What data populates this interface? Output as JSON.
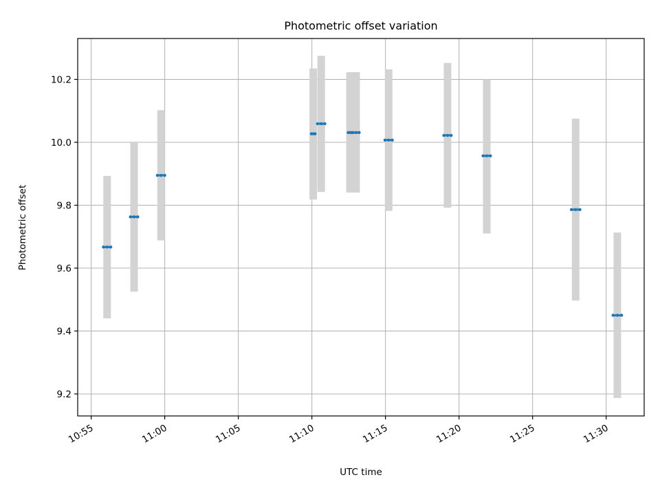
{
  "chart_data": {
    "type": "scatter",
    "title": "Photometric offset variation",
    "xlabel": "UTC time",
    "ylabel": "Photometric offset",
    "x_ticks": [
      "10:55",
      "11:00",
      "11:05",
      "11:10",
      "11:15",
      "11:20",
      "11:25",
      "11:30"
    ],
    "y_ticks": [
      "9.2",
      "9.4",
      "9.6",
      "9.8",
      "10.0",
      "10.2"
    ],
    "xlim": [
      "10:54:05",
      "11:32:35"
    ],
    "ylim": [
      9.13,
      10.33
    ],
    "grid": true,
    "errorbar_color": "#d3d3d3",
    "marker_color": "#1f77b4",
    "points": [
      {
        "x_start": "10:55:50",
        "x_end": "10:56:20",
        "y": 9.667,
        "y_low": 9.44,
        "y_high": 9.893
      },
      {
        "x_start": "10:57:40",
        "x_end": "10:58:10",
        "y": 9.763,
        "y_low": 9.525,
        "y_high": 9.998
      },
      {
        "x_start": "10:59:30",
        "x_end": "11:00:00",
        "y": 9.895,
        "y_low": 9.688,
        "y_high": 10.102
      },
      {
        "x_start": "11:09:58",
        "x_end": "11:10:13",
        "y": 10.027,
        "y_low": 9.818,
        "y_high": 10.235
      },
      {
        "x_start": "11:10:23",
        "x_end": "11:10:53",
        "y": 10.059,
        "y_low": 9.842,
        "y_high": 10.275
      },
      {
        "x_start": "11:12:28",
        "x_end": "11:12:43",
        "y": 10.031,
        "y_low": 9.84,
        "y_high": 10.223
      },
      {
        "x_start": "11:12:48",
        "x_end": "11:13:13",
        "y": 10.031,
        "y_low": 9.84,
        "y_high": 10.223
      },
      {
        "x_start": "11:14:58",
        "x_end": "11:15:28",
        "y": 10.007,
        "y_low": 9.782,
        "y_high": 10.232
      },
      {
        "x_start": "11:18:58",
        "x_end": "11:19:28",
        "y": 10.022,
        "y_low": 9.792,
        "y_high": 10.252
      },
      {
        "x_start": "11:21:38",
        "x_end": "11:22:08",
        "y": 9.957,
        "y_low": 9.71,
        "y_high": 10.2
      },
      {
        "x_start": "11:27:38",
        "x_end": "11:28:13",
        "y": 9.786,
        "y_low": 9.497,
        "y_high": 10.075
      },
      {
        "x_start": "11:30:28",
        "x_end": "11:31:03",
        "y": 9.45,
        "y_low": 9.187,
        "y_high": 9.713
      }
    ]
  }
}
